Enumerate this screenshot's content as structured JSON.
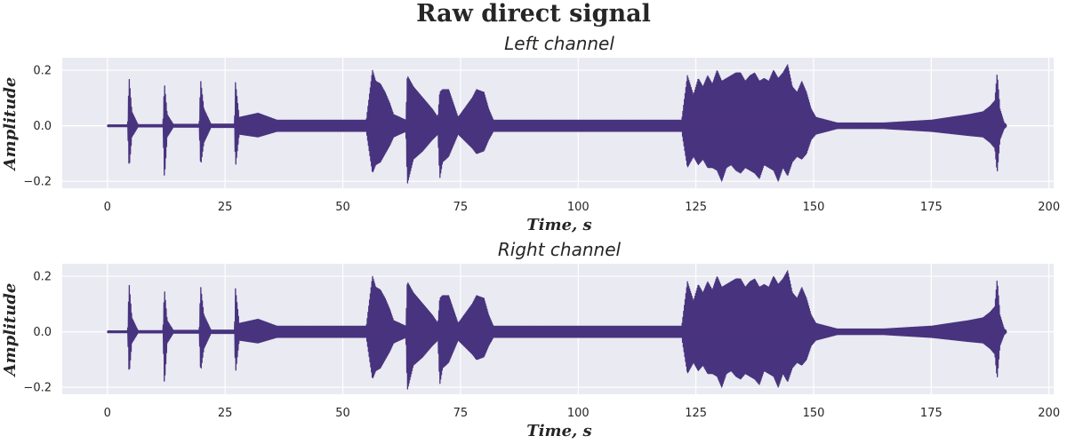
{
  "figure": {
    "suptitle": "Raw direct signal",
    "line_color": "#48337e",
    "background_color": "#eaeaf2"
  },
  "chart_data": [
    {
      "type": "line",
      "title": "Left channel",
      "xlabel": "Time, s",
      "ylabel": "Amplitude",
      "xlim": [
        -9.6,
        201
      ],
      "ylim": [
        -0.225,
        0.245
      ],
      "x_ticks": [
        0,
        25,
        50,
        75,
        100,
        125,
        150,
        175,
        200
      ],
      "x_tick_labels": [
        "0",
        "25",
        "50",
        "75",
        "100",
        "125",
        "150",
        "175",
        "200"
      ],
      "y_ticks": [
        -0.2,
        0.0,
        0.2
      ],
      "y_tick_labels": [
        "−0.2",
        "0.0",
        "0.2"
      ],
      "grid": true,
      "duration_s": 191,
      "envelope_max": [
        [
          0,
          0.003
        ],
        [
          4.3,
          0.003
        ],
        [
          4.6,
          0.175
        ],
        [
          5.2,
          0.05
        ],
        [
          6.5,
          0.004
        ],
        [
          11.8,
          0.004
        ],
        [
          12.1,
          0.155
        ],
        [
          12.7,
          0.04
        ],
        [
          14,
          0.005
        ],
        [
          19.5,
          0.005
        ],
        [
          19.8,
          0.165
        ],
        [
          20.5,
          0.06
        ],
        [
          22,
          0.006
        ],
        [
          27,
          0.006
        ],
        [
          27.2,
          0.155
        ],
        [
          28,
          0.03
        ],
        [
          32,
          0.045
        ],
        [
          36,
          0.02
        ],
        [
          55,
          0.02
        ],
        [
          56.3,
          0.2
        ],
        [
          57,
          0.16
        ],
        [
          58,
          0.15
        ],
        [
          59,
          0.12
        ],
        [
          60,
          0.08
        ],
        [
          60.8,
          0.04
        ],
        [
          63.4,
          0.02
        ],
        [
          63.7,
          0.18
        ],
        [
          65,
          0.14
        ],
        [
          67,
          0.1
        ],
        [
          69,
          0.06
        ],
        [
          70.2,
          0.03
        ],
        [
          70.6,
          0.12
        ],
        [
          71.2,
          0.13
        ],
        [
          72.5,
          0.13
        ],
        [
          74.5,
          0.03
        ],
        [
          77.5,
          0.1
        ],
        [
          78.4,
          0.13
        ],
        [
          80,
          0.12
        ],
        [
          81,
          0.06
        ],
        [
          82,
          0.02
        ],
        [
          122,
          0.02
        ],
        [
          123.2,
          0.18
        ],
        [
          124.5,
          0.11
        ],
        [
          125.5,
          0.17
        ],
        [
          126.5,
          0.14
        ],
        [
          127.5,
          0.18
        ],
        [
          128.5,
          0.15
        ],
        [
          129.5,
          0.2
        ],
        [
          130.5,
          0.16
        ],
        [
          131.5,
          0.17
        ],
        [
          132.5,
          0.18
        ],
        [
          133.5,
          0.19
        ],
        [
          134.5,
          0.19
        ],
        [
          135.5,
          0.16
        ],
        [
          136.5,
          0.18
        ],
        [
          137.5,
          0.19
        ],
        [
          138.5,
          0.16
        ],
        [
          139.5,
          0.17
        ],
        [
          140.5,
          0.16
        ],
        [
          141.5,
          0.2
        ],
        [
          142.5,
          0.17
        ],
        [
          143.5,
          0.19
        ],
        [
          144.5,
          0.22
        ],
        [
          145.5,
          0.14
        ],
        [
          146.5,
          0.12
        ],
        [
          147.5,
          0.16
        ],
        [
          148.5,
          0.12
        ],
        [
          149.5,
          0.06
        ],
        [
          150.5,
          0.03
        ],
        [
          155,
          0.01
        ],
        [
          165,
          0.01
        ],
        [
          175,
          0.02
        ],
        [
          183,
          0.04
        ],
        [
          186,
          0.05
        ],
        [
          187.5,
          0.07
        ],
        [
          188.5,
          0.09
        ],
        [
          189,
          0.19
        ],
        [
          189.6,
          0.06
        ],
        [
          190.5,
          0.01
        ],
        [
          191,
          0.003
        ]
      ],
      "envelope_min": [
        [
          0,
          -0.003
        ],
        [
          4.3,
          -0.003
        ],
        [
          4.6,
          -0.155
        ],
        [
          5.2,
          -0.04
        ],
        [
          6.5,
          -0.004
        ],
        [
          11.8,
          -0.004
        ],
        [
          12.1,
          -0.19
        ],
        [
          12.7,
          -0.04
        ],
        [
          14,
          -0.005
        ],
        [
          19.5,
          -0.005
        ],
        [
          19.8,
          -0.145
        ],
        [
          20.5,
          -0.06
        ],
        [
          22,
          -0.006
        ],
        [
          27,
          -0.006
        ],
        [
          27.2,
          -0.15
        ],
        [
          28,
          -0.03
        ],
        [
          32,
          -0.04
        ],
        [
          36,
          -0.02
        ],
        [
          55,
          -0.02
        ],
        [
          56.3,
          -0.17
        ],
        [
          57,
          -0.14
        ],
        [
          58,
          -0.13
        ],
        [
          59,
          -0.1
        ],
        [
          60,
          -0.07
        ],
        [
          60.8,
          -0.04
        ],
        [
          63.4,
          -0.02
        ],
        [
          63.7,
          -0.21
        ],
        [
          65,
          -0.12
        ],
        [
          67,
          -0.09
        ],
        [
          69,
          -0.05
        ],
        [
          70.2,
          -0.03
        ],
        [
          70.6,
          -0.19
        ],
        [
          71.2,
          -0.13
        ],
        [
          72.5,
          -0.11
        ],
        [
          74.5,
          -0.03
        ],
        [
          77.5,
          -0.08
        ],
        [
          78.4,
          -0.1
        ],
        [
          80,
          -0.09
        ],
        [
          81,
          -0.05
        ],
        [
          82,
          -0.02
        ],
        [
          122,
          -0.02
        ],
        [
          123.2,
          -0.15
        ],
        [
          124.5,
          -0.11
        ],
        [
          125.5,
          -0.14
        ],
        [
          126.5,
          -0.12
        ],
        [
          127.5,
          -0.15
        ],
        [
          128.5,
          -0.15
        ],
        [
          129.5,
          -0.16
        ],
        [
          130.5,
          -0.2
        ],
        [
          131.5,
          -0.15
        ],
        [
          132.5,
          -0.14
        ],
        [
          133.5,
          -0.16
        ],
        [
          134.5,
          -0.17
        ],
        [
          135.5,
          -0.15
        ],
        [
          136.5,
          -0.16
        ],
        [
          137.5,
          -0.17
        ],
        [
          138.5,
          -0.19
        ],
        [
          139.5,
          -0.14
        ],
        [
          140.5,
          -0.15
        ],
        [
          141.5,
          -0.16
        ],
        [
          142.5,
          -0.2
        ],
        [
          143.5,
          -0.15
        ],
        [
          144.5,
          -0.18
        ],
        [
          145.5,
          -0.13
        ],
        [
          146.5,
          -0.11
        ],
        [
          147.5,
          -0.12
        ],
        [
          148.5,
          -0.1
        ],
        [
          149.5,
          -0.05
        ],
        [
          150.5,
          -0.03
        ],
        [
          155,
          -0.01
        ],
        [
          165,
          -0.01
        ],
        [
          175,
          -0.02
        ],
        [
          183,
          -0.035
        ],
        [
          186,
          -0.04
        ],
        [
          187.5,
          -0.06
        ],
        [
          188.5,
          -0.08
        ],
        [
          189,
          -0.17
        ],
        [
          189.6,
          -0.05
        ],
        [
          190.5,
          -0.01
        ],
        [
          191,
          -0.003
        ]
      ]
    },
    {
      "type": "line",
      "title": "Right channel",
      "xlabel": "Time, s",
      "ylabel": "Amplitude",
      "xlim": [
        -9.6,
        201
      ],
      "ylim": [
        -0.225,
        0.245
      ],
      "x_ticks": [
        0,
        25,
        50,
        75,
        100,
        125,
        150,
        175,
        200
      ],
      "x_tick_labels": [
        "0",
        "25",
        "50",
        "75",
        "100",
        "125",
        "150",
        "175",
        "200"
      ],
      "y_ticks": [
        -0.2,
        0.0,
        0.2
      ],
      "y_tick_labels": [
        "−0.2",
        "0.0",
        "0.2"
      ],
      "grid": true,
      "duration_s": 191,
      "envelope_max": [
        [
          0,
          0.003
        ],
        [
          4.3,
          0.003
        ],
        [
          4.6,
          0.175
        ],
        [
          5.2,
          0.05
        ],
        [
          6.5,
          0.004
        ],
        [
          11.8,
          0.004
        ],
        [
          12.1,
          0.155
        ],
        [
          12.7,
          0.04
        ],
        [
          14,
          0.005
        ],
        [
          19.5,
          0.005
        ],
        [
          19.8,
          0.165
        ],
        [
          20.5,
          0.06
        ],
        [
          22,
          0.006
        ],
        [
          27,
          0.006
        ],
        [
          27.2,
          0.155
        ],
        [
          28,
          0.03
        ],
        [
          32,
          0.045
        ],
        [
          36,
          0.02
        ],
        [
          55,
          0.02
        ],
        [
          56.3,
          0.2
        ],
        [
          57,
          0.16
        ],
        [
          58,
          0.15
        ],
        [
          59,
          0.12
        ],
        [
          60,
          0.08
        ],
        [
          60.8,
          0.04
        ],
        [
          63.4,
          0.02
        ],
        [
          63.7,
          0.18
        ],
        [
          65,
          0.14
        ],
        [
          67,
          0.1
        ],
        [
          69,
          0.06
        ],
        [
          70.2,
          0.03
        ],
        [
          70.6,
          0.12
        ],
        [
          71.2,
          0.13
        ],
        [
          72.5,
          0.13
        ],
        [
          74.5,
          0.03
        ],
        [
          77.5,
          0.1
        ],
        [
          78.4,
          0.13
        ],
        [
          80,
          0.12
        ],
        [
          81,
          0.06
        ],
        [
          82,
          0.02
        ],
        [
          122,
          0.02
        ],
        [
          123.2,
          0.18
        ],
        [
          124.5,
          0.11
        ],
        [
          125.5,
          0.17
        ],
        [
          126.5,
          0.14
        ],
        [
          127.5,
          0.18
        ],
        [
          128.5,
          0.15
        ],
        [
          129.5,
          0.2
        ],
        [
          130.5,
          0.16
        ],
        [
          131.5,
          0.17
        ],
        [
          132.5,
          0.18
        ],
        [
          133.5,
          0.19
        ],
        [
          134.5,
          0.19
        ],
        [
          135.5,
          0.16
        ],
        [
          136.5,
          0.18
        ],
        [
          137.5,
          0.19
        ],
        [
          138.5,
          0.16
        ],
        [
          139.5,
          0.17
        ],
        [
          140.5,
          0.16
        ],
        [
          141.5,
          0.2
        ],
        [
          142.5,
          0.17
        ],
        [
          143.5,
          0.19
        ],
        [
          144.5,
          0.22
        ],
        [
          145.5,
          0.14
        ],
        [
          146.5,
          0.12
        ],
        [
          147.5,
          0.16
        ],
        [
          148.5,
          0.12
        ],
        [
          149.5,
          0.06
        ],
        [
          150.5,
          0.03
        ],
        [
          155,
          0.01
        ],
        [
          165,
          0.01
        ],
        [
          175,
          0.02
        ],
        [
          183,
          0.04
        ],
        [
          186,
          0.05
        ],
        [
          187.5,
          0.07
        ],
        [
          188.5,
          0.09
        ],
        [
          189,
          0.19
        ],
        [
          189.6,
          0.06
        ],
        [
          190.5,
          0.01
        ],
        [
          191,
          0.003
        ]
      ],
      "envelope_min": [
        [
          0,
          -0.003
        ],
        [
          4.3,
          -0.003
        ],
        [
          4.6,
          -0.155
        ],
        [
          5.2,
          -0.04
        ],
        [
          6.5,
          -0.004
        ],
        [
          11.8,
          -0.004
        ],
        [
          12.1,
          -0.19
        ],
        [
          12.7,
          -0.04
        ],
        [
          14,
          -0.005
        ],
        [
          19.5,
          -0.005
        ],
        [
          19.8,
          -0.145
        ],
        [
          20.5,
          -0.06
        ],
        [
          22,
          -0.006
        ],
        [
          27,
          -0.006
        ],
        [
          27.2,
          -0.15
        ],
        [
          28,
          -0.03
        ],
        [
          32,
          -0.04
        ],
        [
          36,
          -0.02
        ],
        [
          55,
          -0.02
        ],
        [
          56.3,
          -0.17
        ],
        [
          57,
          -0.14
        ],
        [
          58,
          -0.13
        ],
        [
          59,
          -0.1
        ],
        [
          60,
          -0.07
        ],
        [
          60.8,
          -0.04
        ],
        [
          63.4,
          -0.02
        ],
        [
          63.7,
          -0.21
        ],
        [
          65,
          -0.12
        ],
        [
          67,
          -0.09
        ],
        [
          69,
          -0.05
        ],
        [
          70.2,
          -0.03
        ],
        [
          70.6,
          -0.19
        ],
        [
          71.2,
          -0.13
        ],
        [
          72.5,
          -0.11
        ],
        [
          74.5,
          -0.03
        ],
        [
          77.5,
          -0.08
        ],
        [
          78.4,
          -0.1
        ],
        [
          80,
          -0.09
        ],
        [
          81,
          -0.05
        ],
        [
          82,
          -0.02
        ],
        [
          122,
          -0.02
        ],
        [
          123.2,
          -0.15
        ],
        [
          124.5,
          -0.11
        ],
        [
          125.5,
          -0.14
        ],
        [
          126.5,
          -0.12
        ],
        [
          127.5,
          -0.15
        ],
        [
          128.5,
          -0.15
        ],
        [
          129.5,
          -0.16
        ],
        [
          130.5,
          -0.2
        ],
        [
          131.5,
          -0.15
        ],
        [
          132.5,
          -0.14
        ],
        [
          133.5,
          -0.16
        ],
        [
          134.5,
          -0.17
        ],
        [
          135.5,
          -0.15
        ],
        [
          136.5,
          -0.16
        ],
        [
          137.5,
          -0.17
        ],
        [
          138.5,
          -0.19
        ],
        [
          139.5,
          -0.14
        ],
        [
          140.5,
          -0.15
        ],
        [
          141.5,
          -0.16
        ],
        [
          142.5,
          -0.2
        ],
        [
          143.5,
          -0.15
        ],
        [
          144.5,
          -0.18
        ],
        [
          145.5,
          -0.13
        ],
        [
          146.5,
          -0.11
        ],
        [
          147.5,
          -0.12
        ],
        [
          148.5,
          -0.1
        ],
        [
          149.5,
          -0.05
        ],
        [
          150.5,
          -0.03
        ],
        [
          155,
          -0.01
        ],
        [
          165,
          -0.01
        ],
        [
          175,
          -0.02
        ],
        [
          183,
          -0.035
        ],
        [
          186,
          -0.04
        ],
        [
          187.5,
          -0.06
        ],
        [
          188.5,
          -0.08
        ],
        [
          189,
          -0.17
        ],
        [
          189.6,
          -0.05
        ],
        [
          190.5,
          -0.01
        ],
        [
          191,
          -0.003
        ]
      ]
    }
  ]
}
